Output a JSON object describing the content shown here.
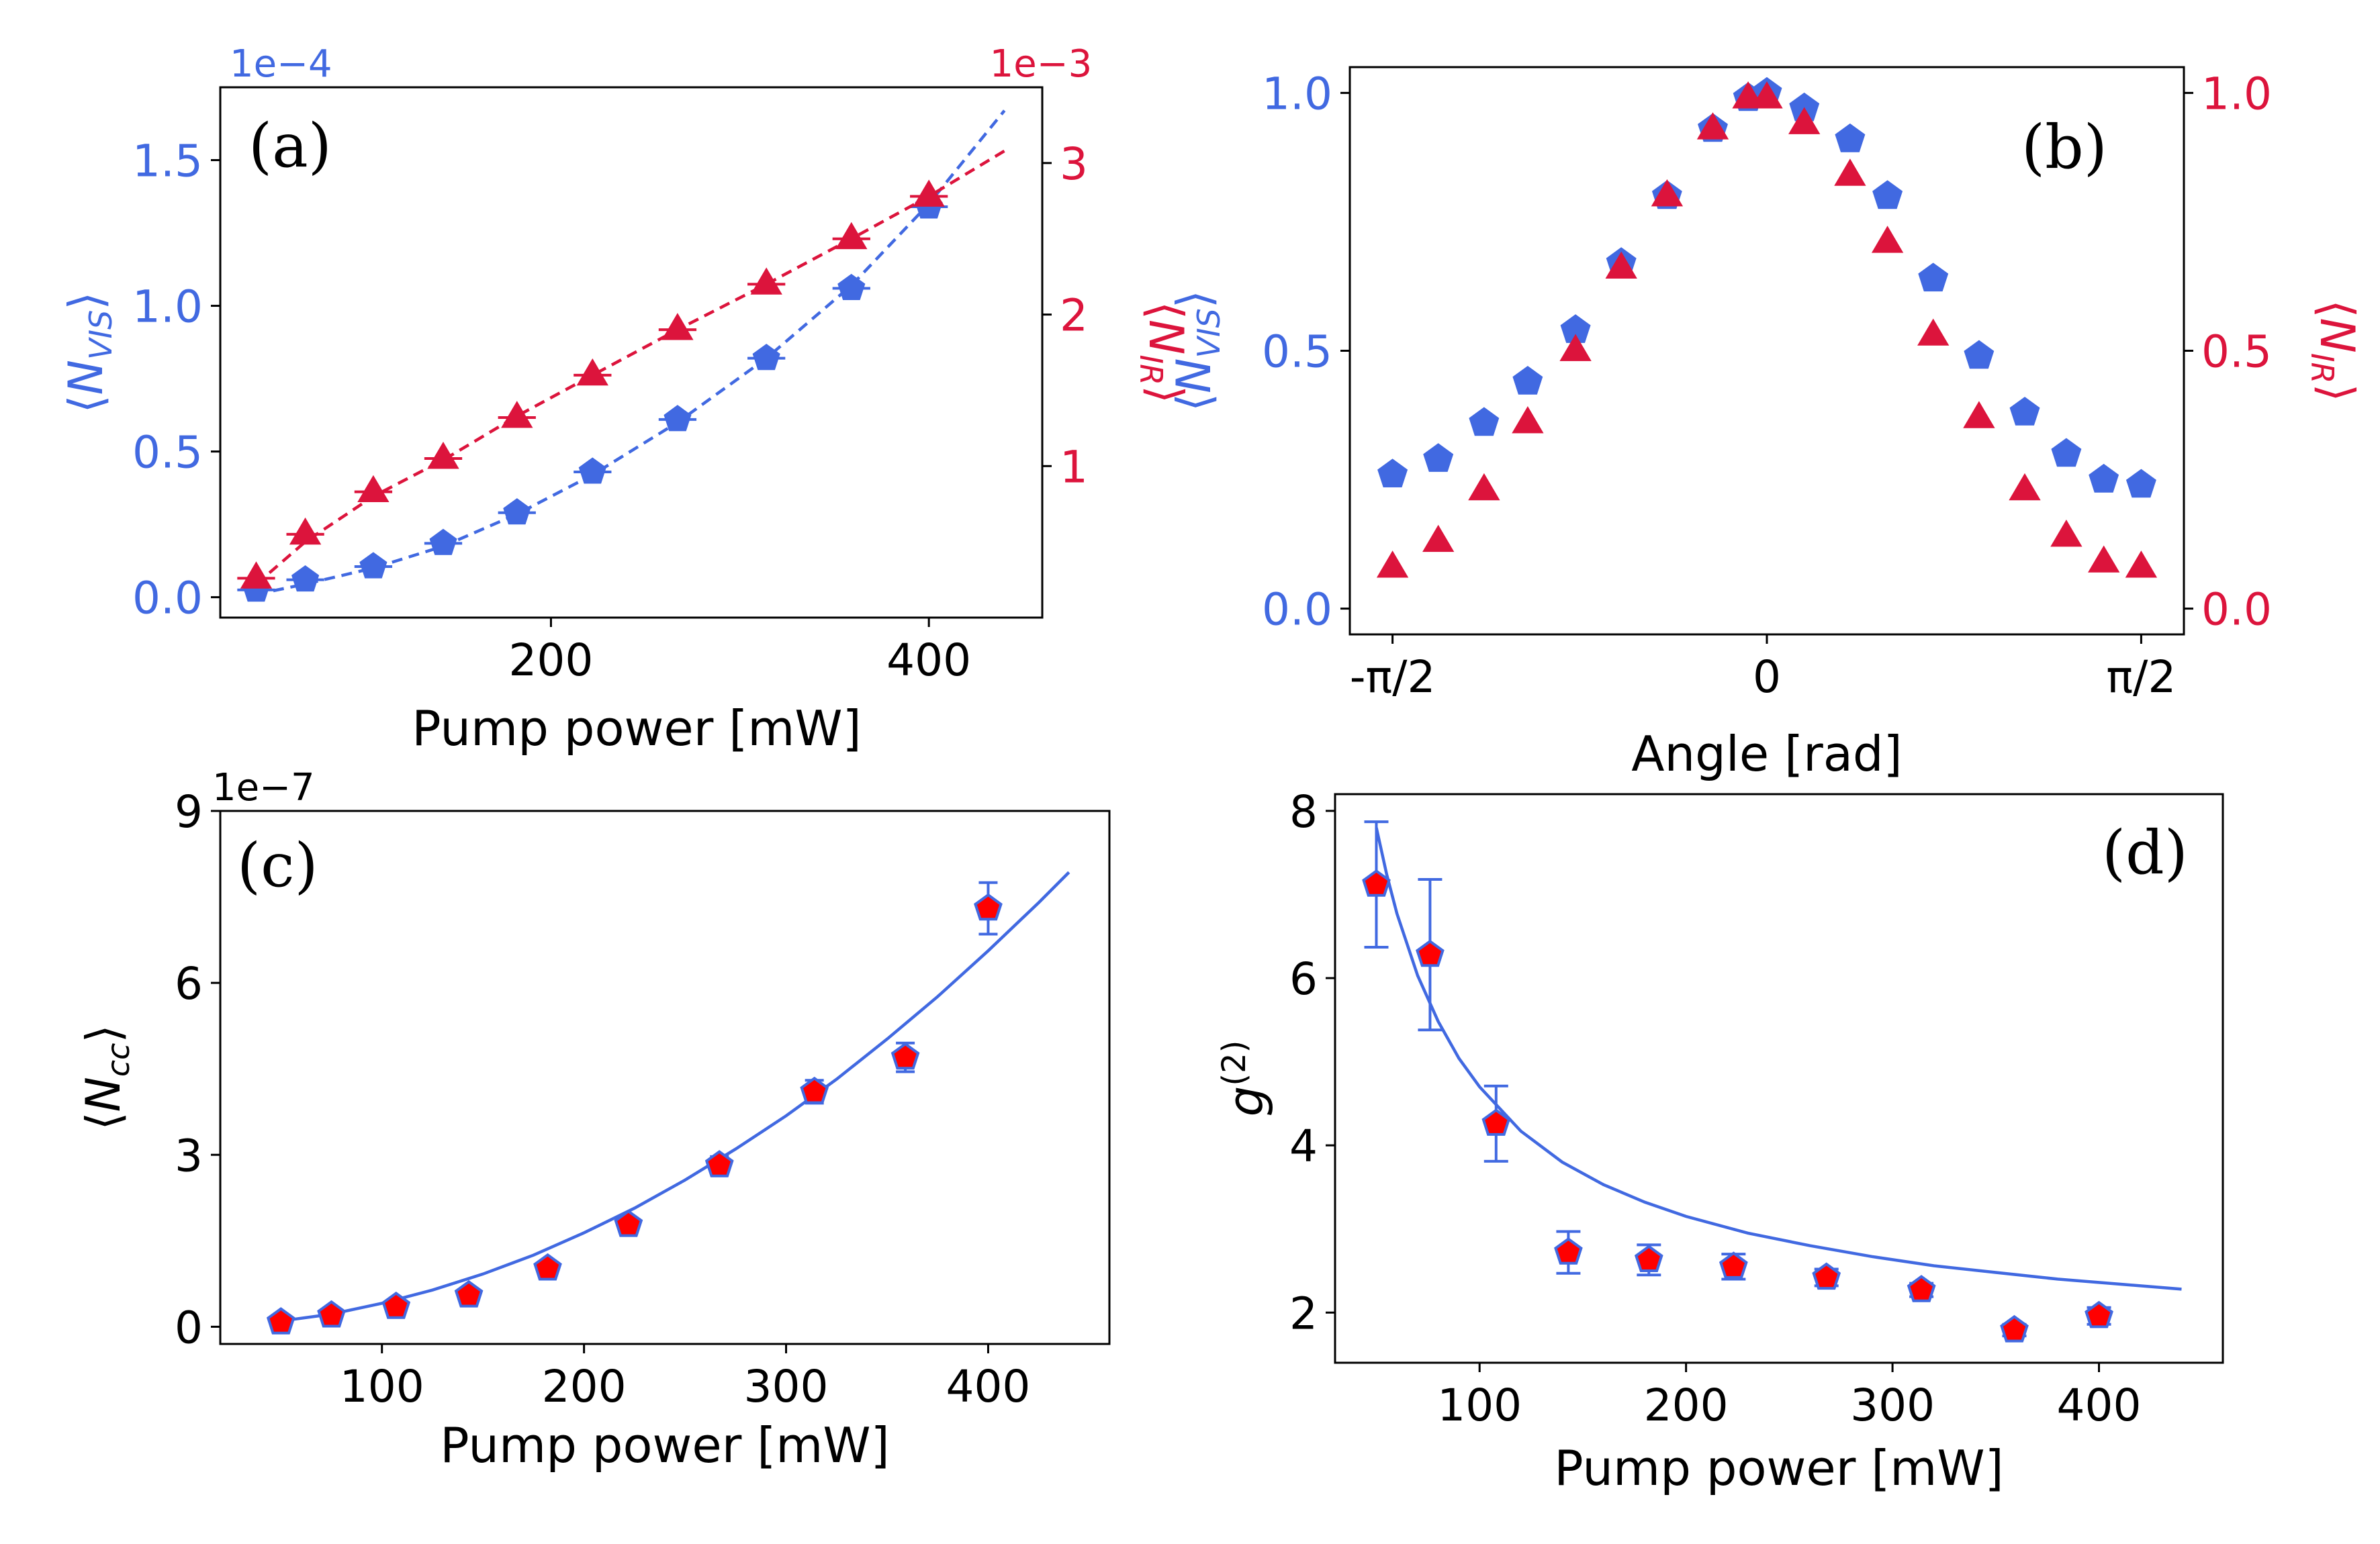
{
  "chart_data": [
    {
      "type": "scatter",
      "panel_label": "(a)",
      "xlabel": "Pump power [mW]",
      "ylabel_left": "⟨N_VIS⟩",
      "ylabel_right": "⟨N_IR⟩",
      "offset_left": "1e−4",
      "offset_right": "1e−3",
      "xlim": [
        25,
        460
      ],
      "ylim_left": [
        -0.07,
        1.75
      ],
      "ylim_right": [
        0.0,
        3.5
      ],
      "xticks": [
        200,
        400
      ],
      "yticks_left": [
        0.0,
        0.5,
        1.0,
        1.5
      ],
      "yticks_right": [
        1,
        2,
        3
      ],
      "series": [
        {
          "name": "⟨N_VIS⟩",
          "axis": "left",
          "color": "#4169E1",
          "marker": "pentagon",
          "x": [
            44,
            70,
            106,
            143,
            182,
            222,
            267,
            314,
            359,
            400
          ],
          "y": [
            0.025,
            0.06,
            0.105,
            0.185,
            0.29,
            0.43,
            0.61,
            0.82,
            1.06,
            1.34
          ],
          "xerr": 10,
          "fit": {
            "x": [
              44,
              70,
              106,
              143,
              182,
              222,
              267,
              314,
              359,
              400,
              440
            ],
            "y": [
              0.01,
              0.045,
              0.1,
              0.175,
              0.285,
              0.42,
              0.6,
              0.82,
              1.07,
              1.35,
              1.67
            ]
          }
        },
        {
          "name": "⟨N_IR⟩",
          "axis": "right",
          "color": "#DC143C",
          "marker": "triangle",
          "x": [
            44,
            70,
            106,
            143,
            182,
            222,
            267,
            314,
            359,
            400
          ],
          "y": [
            0.26,
            0.55,
            0.83,
            1.05,
            1.32,
            1.6,
            1.9,
            2.2,
            2.5,
            2.78
          ],
          "xerr": 10,
          "fit": {
            "x": [
              44,
              70,
              106,
              143,
              182,
              222,
              267,
              314,
              359,
              400,
              440
            ],
            "y": [
              0.22,
              0.5,
              0.8,
              1.04,
              1.33,
              1.6,
              1.9,
              2.2,
              2.5,
              2.78,
              3.08
            ]
          }
        }
      ]
    },
    {
      "type": "scatter",
      "panel_label": "(b)",
      "xlabel": "Angle [rad]",
      "ylabel_left": "⟨N_VIS⟩",
      "ylabel_right": "⟨N_IR⟩",
      "xlim": [
        -1.75,
        1.75
      ],
      "ylim_left": [
        -0.05,
        1.05
      ],
      "ylim_right": [
        -0.05,
        1.05
      ],
      "xtick_values": [
        -1.5708,
        0,
        1.5708
      ],
      "xtick_labels": [
        "-π/2",
        "0",
        "π/2"
      ],
      "yticks_left": [
        0.0,
        0.5,
        1.0
      ],
      "yticks_right": [
        0.0,
        0.5,
        1.0
      ],
      "series": [
        {
          "name": "⟨N_VIS⟩",
          "axis": "left",
          "color": "#4169E1",
          "marker": "pentagon",
          "x": [
            -1.5708,
            -1.3788,
            -1.1868,
            -1.0036,
            -0.8028,
            -0.6109,
            -0.4189,
            -0.2269,
            -0.0785,
            0.0,
            0.1571,
            0.3491,
            0.5061,
            0.6981,
            0.8901,
            1.0821,
            1.2566,
            1.4137,
            1.5708
          ],
          "y": [
            0.26,
            0.29,
            0.36,
            0.44,
            0.54,
            0.67,
            0.8,
            0.93,
            0.99,
            1.0,
            0.97,
            0.91,
            0.8,
            0.64,
            0.49,
            0.38,
            0.3,
            0.25,
            0.24
          ]
        },
        {
          "name": "⟨N_IR⟩",
          "axis": "right",
          "color": "#DC143C",
          "marker": "triangle",
          "x": [
            -1.5708,
            -1.3788,
            -1.1868,
            -1.0036,
            -0.8028,
            -0.6109,
            -0.4189,
            -0.2269,
            -0.0785,
            0.0,
            0.1571,
            0.3491,
            0.5061,
            0.6981,
            0.8901,
            1.0821,
            1.2566,
            1.4137,
            1.5708
          ],
          "y": [
            0.08,
            0.13,
            0.23,
            0.36,
            0.5,
            0.66,
            0.8,
            0.93,
            0.99,
            0.99,
            0.94,
            0.84,
            0.71,
            0.53,
            0.37,
            0.23,
            0.14,
            0.09,
            0.08
          ]
        }
      ]
    },
    {
      "type": "scatter",
      "panel_label": "(c)",
      "xlabel": "Pump power [mW]",
      "ylabel": "⟨N_cc⟩",
      "offset": "1e−7",
      "xlim": [
        20,
        460
      ],
      "ylim": [
        -0.3,
        9
      ],
      "xticks": [
        100,
        200,
        300,
        400
      ],
      "yticks": [
        0,
        3,
        6,
        9
      ],
      "series": [
        {
          "name": "⟨N_cc⟩",
          "color": "#4169E1",
          "fill": "#FF0000",
          "marker": "pentagon",
          "x": [
            50,
            75,
            107,
            143,
            182,
            222,
            267,
            314,
            359,
            400
          ],
          "y": [
            0.08,
            0.2,
            0.35,
            0.55,
            1.02,
            1.78,
            2.82,
            4.1,
            4.7,
            7.3
          ],
          "yerr": [
            0.05,
            0.08,
            0.1,
            0.1,
            0.12,
            0.12,
            0.15,
            0.2,
            0.25,
            0.45
          ]
        }
      ],
      "fit": {
        "color": "#4169E1",
        "x": [
          50,
          75,
          100,
          125,
          150,
          175,
          200,
          225,
          250,
          275,
          300,
          325,
          350,
          375,
          400,
          425,
          440
        ],
        "y": [
          0.1,
          0.22,
          0.41,
          0.64,
          0.92,
          1.25,
          1.64,
          2.07,
          2.56,
          3.1,
          3.68,
          4.32,
          5.02,
          5.76,
          6.56,
          7.4,
          7.93
        ]
      }
    },
    {
      "type": "scatter",
      "panel_label": "(d)",
      "xlabel": "Pump power [mW]",
      "ylabel": "g^(2)",
      "xlim": [
        30,
        460
      ],
      "ylim": [
        1.4,
        8.2
      ],
      "xticks": [
        100,
        200,
        300,
        400
      ],
      "yticks": [
        2,
        4,
        6,
        8
      ],
      "series": [
        {
          "name": "g^(2)",
          "color": "#4169E1",
          "fill": "#FF0000",
          "marker": "pentagon",
          "x": [
            50,
            76,
            108,
            143,
            182,
            223,
            268,
            314,
            359,
            400
          ],
          "y": [
            7.12,
            6.28,
            4.26,
            2.72,
            2.63,
            2.55,
            2.42,
            2.27,
            1.79,
            1.96
          ],
          "yerr": [
            0.75,
            0.9,
            0.45,
            0.25,
            0.18,
            0.15,
            0.1,
            0.08,
            0.07,
            0.1
          ]
        }
      ],
      "fit": {
        "color": "#4169E1",
        "x": [
          50,
          55,
          60,
          70,
          80,
          90,
          100,
          120,
          140,
          160,
          180,
          200,
          230,
          260,
          290,
          320,
          350,
          380,
          410,
          440
        ],
        "y": [
          7.8,
          7.24,
          6.77,
          6.03,
          5.48,
          5.04,
          4.7,
          4.17,
          3.8,
          3.53,
          3.32,
          3.15,
          2.95,
          2.8,
          2.67,
          2.56,
          2.48,
          2.4,
          2.34,
          2.28
        ]
      }
    }
  ]
}
